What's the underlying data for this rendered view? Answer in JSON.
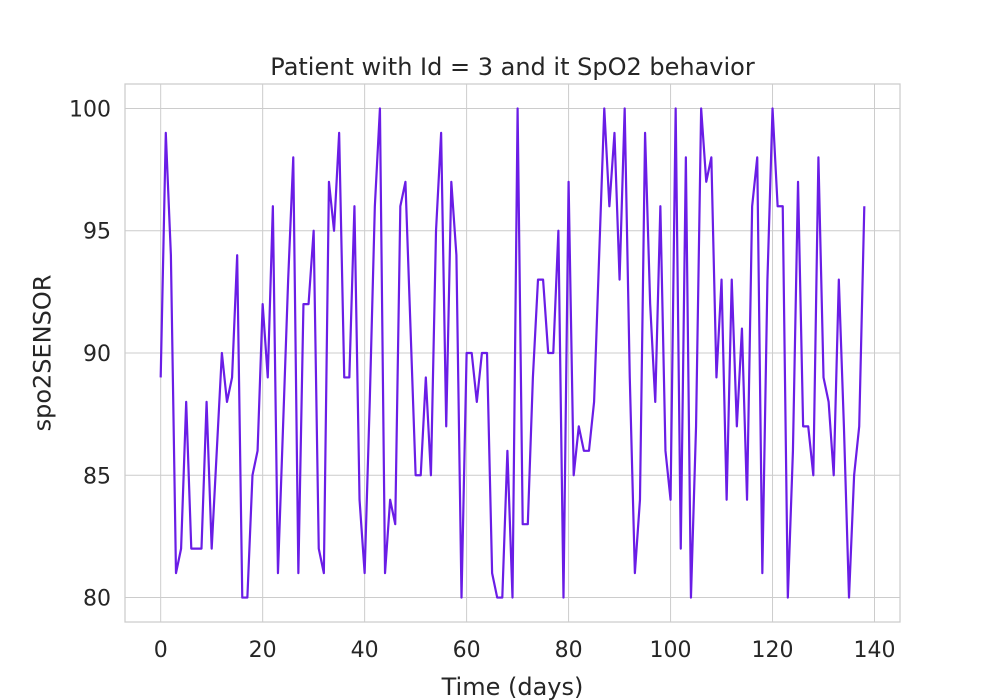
{
  "chart_data": {
    "type": "line",
    "title": "Patient with Id = 3 and it SpO2 behavior",
    "xlabel": "Time (days)",
    "ylabel": "spo2SENSOR",
    "xlim": [
      -7,
      145
    ],
    "ylim": [
      79,
      101
    ],
    "xticks": [
      0,
      20,
      40,
      60,
      80,
      100,
      120,
      140
    ],
    "yticks": [
      80,
      85,
      90,
      95,
      100
    ],
    "grid": true,
    "legend": "none",
    "colors": {
      "series": "#6a1de6",
      "grid": "#cccccc",
      "text": "#262626"
    },
    "series": [
      {
        "x": [
          0,
          1,
          2,
          3,
          4,
          5,
          6,
          7,
          8,
          9,
          10,
          11,
          12,
          13,
          14,
          15,
          16,
          17,
          18,
          19,
          20,
          21,
          22,
          23,
          24,
          25,
          26,
          27,
          28,
          29,
          30,
          31,
          32,
          33,
          34,
          35,
          36,
          37,
          38,
          39,
          40,
          41,
          42,
          43,
          44,
          45,
          46,
          47,
          48,
          49,
          50,
          51,
          52,
          53,
          54,
          55,
          56,
          57,
          58,
          59,
          60,
          61,
          62,
          63,
          64,
          65,
          66,
          67,
          68,
          69,
          70,
          71,
          72,
          73,
          74,
          75,
          76,
          77,
          78,
          79,
          80,
          81,
          82,
          83,
          84,
          85,
          86,
          87,
          88,
          89,
          90,
          91,
          92,
          93,
          94,
          95,
          96,
          97,
          98,
          99,
          100,
          101,
          102,
          103,
          104,
          105,
          106,
          107,
          108,
          109,
          110,
          111,
          112,
          113,
          114,
          115,
          116,
          117,
          118,
          119,
          120,
          121,
          122,
          123,
          124,
          125,
          126,
          127,
          128,
          129,
          130,
          131,
          132,
          133,
          134,
          135,
          136,
          137,
          138
        ],
        "values": [
          89,
          99,
          94,
          81,
          82,
          88,
          82,
          82,
          82,
          88,
          82,
          86,
          90,
          88,
          89,
          94,
          80,
          80,
          85,
          86,
          92,
          89,
          96,
          81,
          87,
          93,
          98,
          81,
          92,
          92,
          95,
          82,
          81,
          97,
          95,
          99,
          89,
          89,
          96,
          84,
          81,
          88,
          96,
          100,
          81,
          84,
          83,
          96,
          97,
          91,
          85,
          85,
          89,
          85,
          95,
          99,
          87,
          97,
          94,
          80,
          90,
          90,
          88,
          90,
          90,
          81,
          80,
          80,
          86,
          80,
          100,
          83,
          83,
          89,
          93,
          93,
          90,
          90,
          95,
          80,
          97,
          85,
          87,
          86,
          86,
          88,
          94,
          100,
          96,
          99,
          93,
          100,
          89,
          81,
          84,
          99,
          92,
          88,
          96,
          86,
          84,
          100,
          82,
          98,
          80,
          87,
          100,
          97,
          98,
          89,
          93,
          84,
          93,
          87,
          91,
          84,
          96,
          98,
          81,
          93,
          100,
          96,
          96,
          80,
          86,
          97,
          87,
          87,
          85,
          98,
          89,
          88,
          85,
          93,
          87,
          80,
          85,
          87,
          96
        ]
      }
    ]
  }
}
